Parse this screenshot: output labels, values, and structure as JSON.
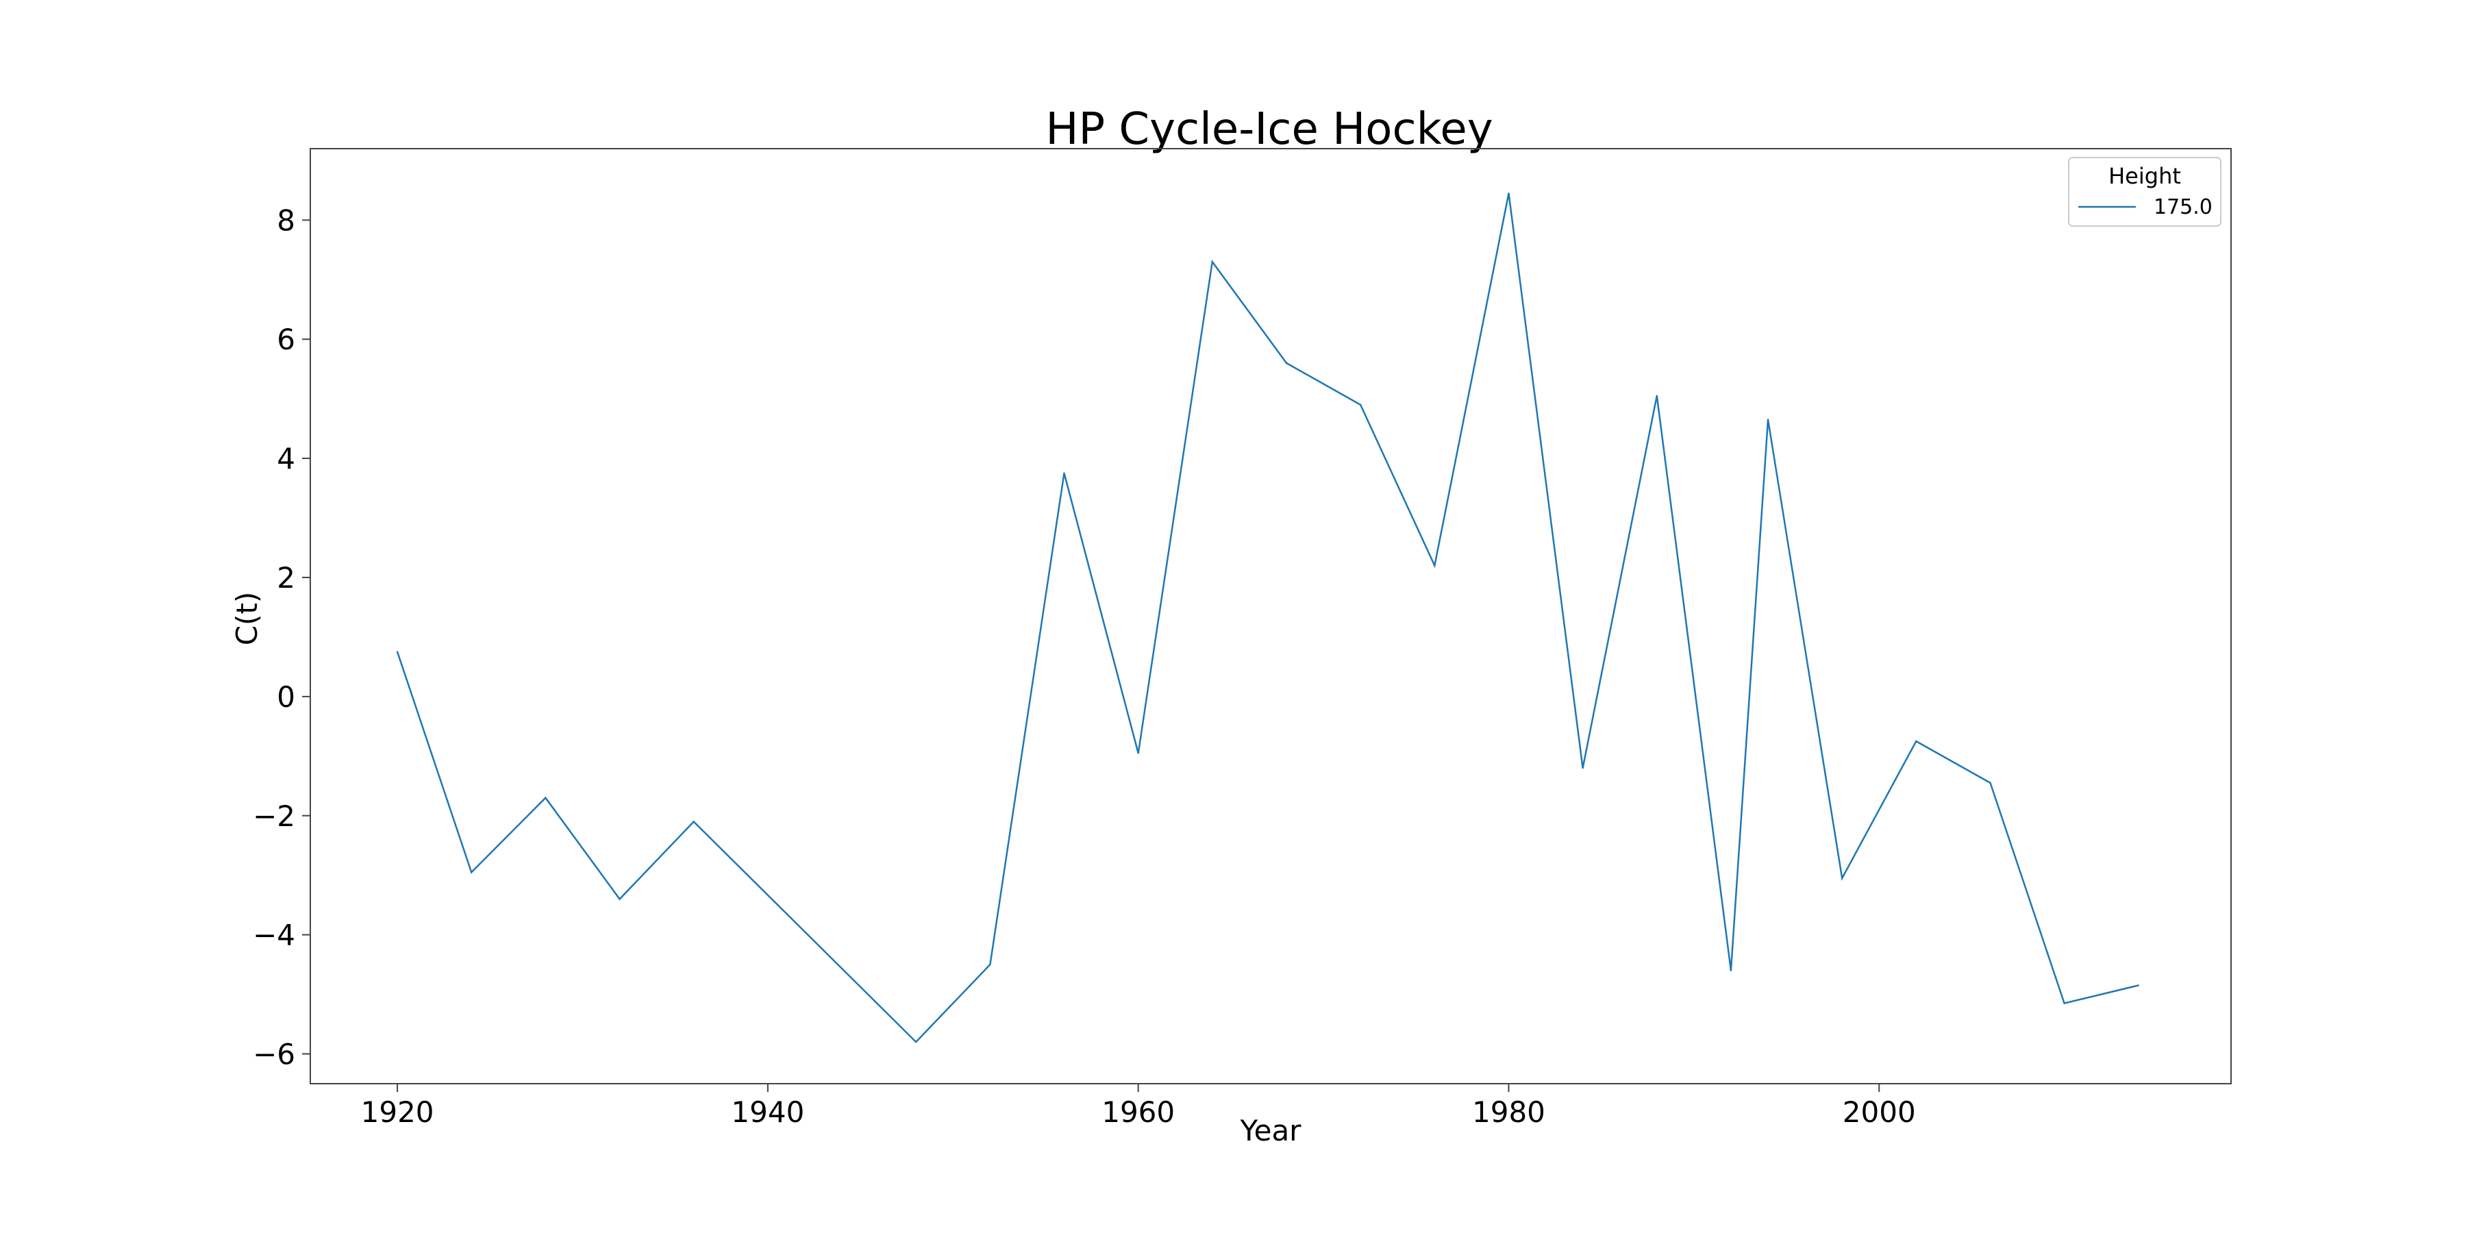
{
  "chart_data": {
    "type": "line",
    "title": "HP Cycle-Ice Hockey",
    "xlabel": "Year",
    "ylabel": "C(t)",
    "xlim": [
      1915.3,
      2019
    ],
    "ylim": [
      -6.5,
      9.2
    ],
    "x_ticks": [
      1920,
      1940,
      1960,
      1980,
      2000
    ],
    "x_tick_labels": [
      "1920",
      "1940",
      "1960",
      "1980",
      "2000"
    ],
    "y_ticks": [
      8,
      6,
      4,
      2,
      0,
      -2,
      -4,
      -6
    ],
    "y_tick_labels": [
      "8",
      "6",
      "4",
      "2",
      "0",
      "−2",
      "−4",
      "−6"
    ],
    "grid": false,
    "legend": {
      "title": "Height",
      "placement": "top-right"
    },
    "colors": {
      "series": "#1f77b4",
      "axes": "#444444",
      "legend_border": "#cccccc"
    },
    "series": [
      {
        "name": "175.0",
        "x": [
          1920,
          1924,
          1928,
          1932,
          1936,
          1948,
          1952,
          1956,
          1960,
          1964,
          1968,
          1972,
          1976,
          1980,
          1984,
          1988,
          1992,
          1994,
          1998,
          2002,
          2006,
          2010,
          2014
        ],
        "y": [
          0.75,
          -2.95,
          -1.7,
          -3.4,
          -2.1,
          -5.8,
          -4.5,
          3.75,
          -0.95,
          7.3,
          5.6,
          4.9,
          2.2,
          8.45,
          -1.2,
          5.05,
          -4.6,
          4.65,
          -3.05,
          -0.75,
          -1.45,
          -5.15,
          -4.85
        ]
      }
    ]
  }
}
